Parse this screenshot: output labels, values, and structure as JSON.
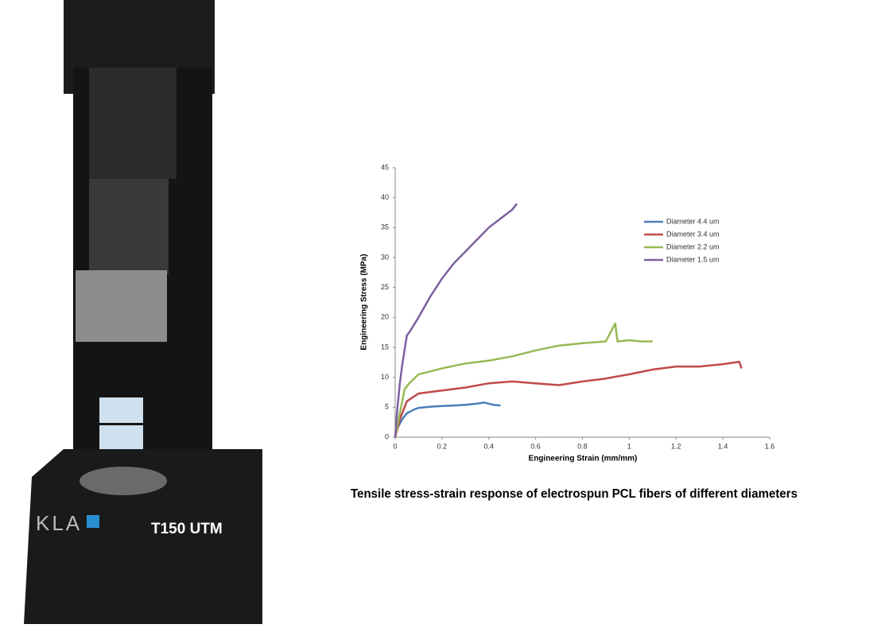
{
  "photo": {
    "brand": "KLA",
    "model": "T150 UTM"
  },
  "caption": "Tensile stress-strain response of electrospun PCL fibers of different diameters",
  "chart_data": {
    "type": "line",
    "x_label": "Engineering Strain (mm/mm)",
    "y_label": "Engineering Stress (MPa)",
    "xlim": [
      0,
      1.6
    ],
    "xticks": [
      0,
      0.2,
      0.4,
      0.6,
      0.8,
      1,
      1.2,
      1.4,
      1.6
    ],
    "ylim": [
      0,
      45
    ],
    "yticks": [
      0,
      5,
      10,
      15,
      20,
      25,
      30,
      35,
      40,
      45
    ],
    "grid": false,
    "legend": "upper right",
    "series": [
      {
        "name": "Diameter 4.4 um",
        "color": "#4a7ebb",
        "x": [
          0,
          0.01,
          0.03,
          0.05,
          0.08,
          0.1,
          0.15,
          0.2,
          0.25,
          0.3,
          0.35,
          0.38,
          0.42,
          0.45
        ],
        "values": [
          0,
          1.5,
          3,
          4,
          4.6,
          4.9,
          5.1,
          5.2,
          5.3,
          5.4,
          5.6,
          5.8,
          5.4,
          5.3
        ]
      },
      {
        "name": "Diameter 3.4 um",
        "color": "#be4b48",
        "x": [
          0,
          0.02,
          0.05,
          0.1,
          0.2,
          0.3,
          0.4,
          0.5,
          0.6,
          0.7,
          0.8,
          0.9,
          1,
          1.1,
          1.2,
          1.3,
          1.4,
          1.47,
          1.48
        ],
        "values": [
          0,
          3,
          6,
          7.3,
          7.8,
          8.3,
          9,
          9.3,
          9,
          8.7,
          9.3,
          9.8,
          10.5,
          11.3,
          11.8,
          11.8,
          12.2,
          12.6,
          11.5
        ]
      },
      {
        "name": "Diameter 2.2 um",
        "color": "#98b954",
        "x": [
          0,
          0.02,
          0.04,
          0.06,
          0.1,
          0.2,
          0.3,
          0.4,
          0.5,
          0.6,
          0.7,
          0.8,
          0.9,
          0.94,
          0.95,
          1,
          1.05,
          1.1
        ],
        "values": [
          0,
          4,
          8,
          9,
          10.5,
          11.5,
          12.3,
          12.8,
          13.5,
          14.5,
          15.3,
          15.7,
          16,
          19,
          16,
          16.2,
          16,
          16
        ]
      },
      {
        "name": "Diameter 1.5 um",
        "color": "#7d60a0",
        "x": [
          0,
          0.01,
          0.02,
          0.03,
          0.05,
          0.06,
          0.1,
          0.15,
          0.2,
          0.25,
          0.3,
          0.35,
          0.4,
          0.45,
          0.5,
          0.52
        ],
        "values": [
          0,
          5,
          9,
          12,
          17,
          17.5,
          20,
          23.5,
          26.5,
          29,
          31,
          33,
          35,
          36.5,
          38,
          39
        ]
      }
    ]
  }
}
